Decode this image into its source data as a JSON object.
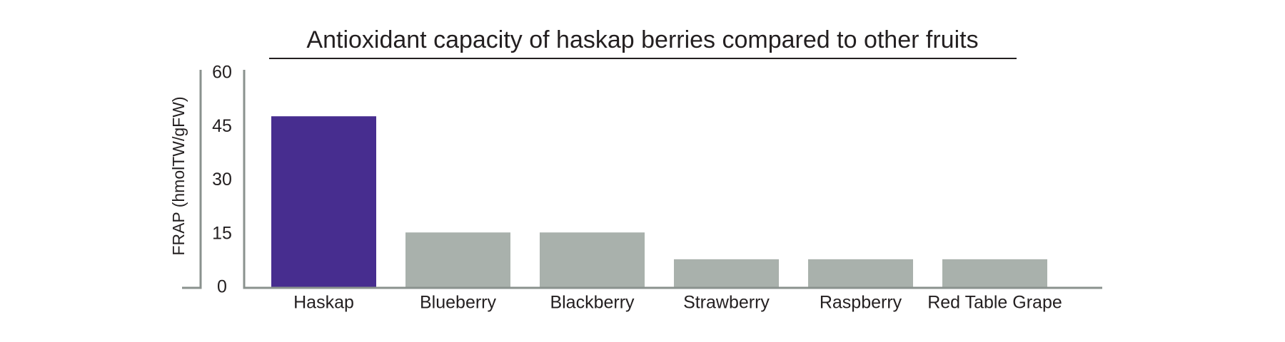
{
  "chart_data": {
    "type": "bar",
    "title": "Antioxidant capacity of haskap berries compared to other fruits",
    "y_label": "FRAP (hmolTW/gFW)",
    "categories": [
      "Haskap",
      "Blueberry",
      "Blackberry",
      "Strawberry",
      "Raspberry",
      "Red Table Grape"
    ],
    "values": [
      48,
      15.5,
      15.5,
      8,
      8,
      8
    ],
    "colors": [
      "#472d8f",
      "#a9b1ac",
      "#a9b1ac",
      "#a9b1ac",
      "#a9b1ac",
      "#a9b1ac"
    ],
    "ylim": [
      0,
      60
    ],
    "yticks": [
      0,
      15,
      30,
      45,
      60
    ],
    "grid": false
  }
}
